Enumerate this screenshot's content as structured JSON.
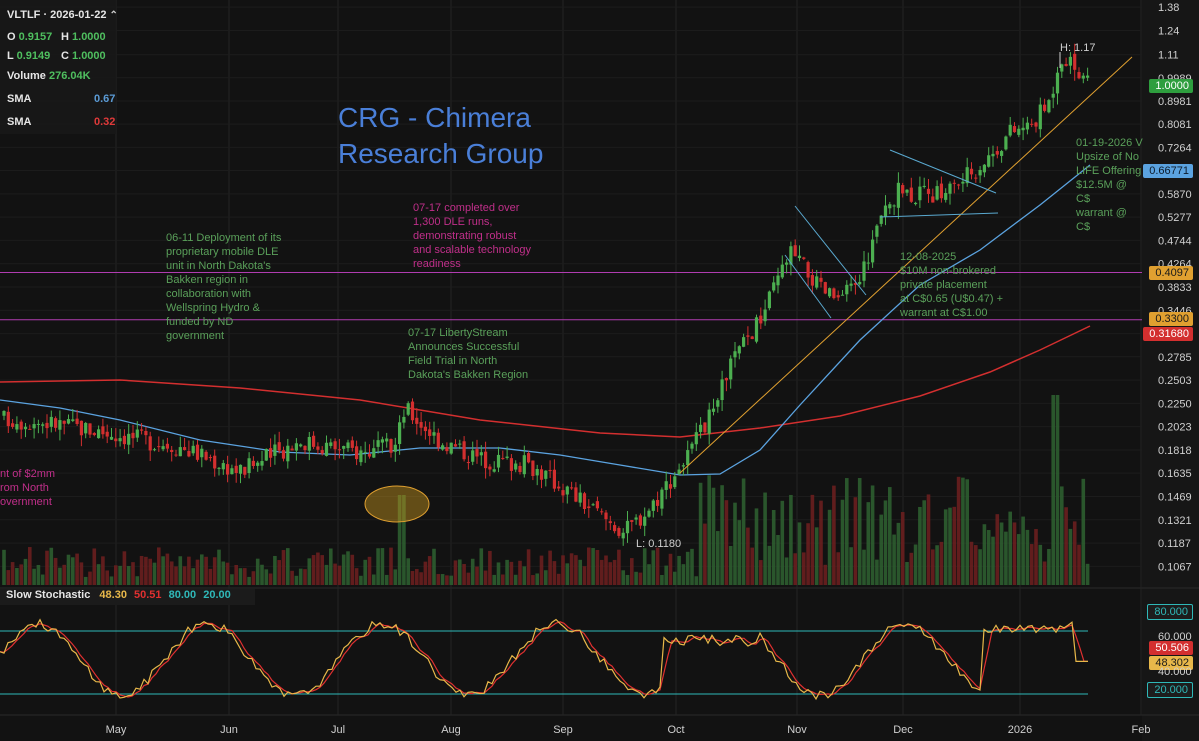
{
  "header": {
    "symbol_date": "VLTLF · 2026-01-22",
    "o_label": "O",
    "o_value": "0.9157",
    "h_label": "H",
    "h_value": "1.0000",
    "l_label": "L",
    "l_value": "0.9149",
    "c_label": "C",
    "c_value": "1.0000",
    "volume_label": "Volume",
    "volume_value": "276.04K",
    "sma1_label": "SMA",
    "sma1_value": "0.67",
    "sma2_label": "SMA",
    "sma2_value": "0.32"
  },
  "title": "CRG - Chimera\nResearch Group",
  "notes": {
    "n1": "nt of $2mm\nrom North\novernment",
    "n2": "06-11 Deployment of its\nproprietary mobile DLE\nunit in North Dakota's\nBakken region in\ncollaboration with\nWellspring Hydro &\nfunded by ND\ngovernment",
    "n3": "07-17 completed over\n1,300 DLE runs,\ndemonstrating robust\nand scalable technology\nreadiness",
    "n4": "07-17 LibertyStream\nAnnounces Successful\nField Trial in North\nDakota's Bakken Region",
    "n5": "12-08-2025\n$10M non-brokered\nprivate placement\nat C$0.65 (U$0.47) +\nwarrant at C$1.00",
    "n6": "01-19-2026 V\nUpsize of No\nLIFE Offering\n$12.5M @ C$\nwarrant @ C$"
  },
  "extremes": {
    "high": "H: 1.17",
    "low": "L: 0.1180"
  },
  "price_tags": {
    "last": "1.0000",
    "sma_fast": "0.66771",
    "line_upper": "0.4097",
    "line_lower": "0.3300",
    "sma_slow": "0.31680"
  },
  "stochastic": {
    "title": "Slow Stochastic",
    "k": "48.30",
    "d": "50.51",
    "upper": "80.00",
    "lower": "20.00",
    "tags": {
      "upper": "80.000",
      "d": "50.506",
      "k": "48.302",
      "lower": "20.000"
    },
    "ticks": [
      "60.000",
      "40.000"
    ]
  },
  "colors": {
    "background": "#121212",
    "up": "#4caf50",
    "down": "#d32f2f",
    "sma_fast": "#5ba3e0",
    "sma_slow": "#d32f2f",
    "trendline": "#e0a030",
    "horizontal": "#b03cb0",
    "channel": "#5aa9d0",
    "stoch_k": "#e8b84a",
    "stoch_d": "#e03030",
    "stoch_band": "#2fb8b8",
    "title": "#4a7fd8"
  },
  "chart_data": {
    "type": "candlestick",
    "symbol": "VLTLF",
    "y_scale": "log",
    "ylim": [
      0.098,
      1.4
    ],
    "y_ticks": [
      "1.38",
      "1.24",
      "1.11",
      "0.9989",
      "0.8981",
      "0.8081",
      "0.7264",
      "0.6535",
      "0.5870",
      "0.5277",
      "0.4744",
      "0.4264",
      "0.3833",
      "0.3446",
      "0.3097",
      "0.2785",
      "0.2503",
      "0.2250",
      "0.2023",
      "0.1818",
      "0.1635",
      "0.1469",
      "0.1321",
      "0.1187",
      "0.1067"
    ],
    "x_ticks": [
      "May",
      "Jun",
      "Jul",
      "Aug",
      "Sep",
      "Oct",
      "Nov",
      "Dec",
      "2026",
      "Feb"
    ],
    "horizontal_lines": [
      0.4097,
      0.33
    ],
    "last_price": 1.0,
    "high_marker": 1.17,
    "low_marker": 0.118,
    "sma_fast_last": 0.66771,
    "sma_slow_last": 0.3168,
    "price_path": [
      {
        "month": "Apr",
        "close": 0.21
      },
      {
        "month": "May",
        "close": 0.195
      },
      {
        "month": "Jun",
        "close": 0.18
      },
      {
        "month": "Jul",
        "close": 0.19
      },
      {
        "month": "Jul",
        "close": 0.22
      },
      {
        "month": "Aug",
        "close": 0.175
      },
      {
        "month": "Sep",
        "close": 0.15
      },
      {
        "month": "Sep",
        "close": 0.125
      },
      {
        "month": "Oct",
        "close": 0.2
      },
      {
        "month": "Oct",
        "close": 0.3
      },
      {
        "month": "Nov",
        "close": 0.45
      },
      {
        "month": "Nov",
        "close": 0.36
      },
      {
        "month": "Dec",
        "close": 0.58
      },
      {
        "month": "Dec",
        "close": 0.62
      },
      {
        "month": "2026",
        "close": 0.78
      },
      {
        "month": "2026",
        "close": 1.17
      },
      {
        "month": "2026",
        "close": 1.0
      }
    ]
  }
}
